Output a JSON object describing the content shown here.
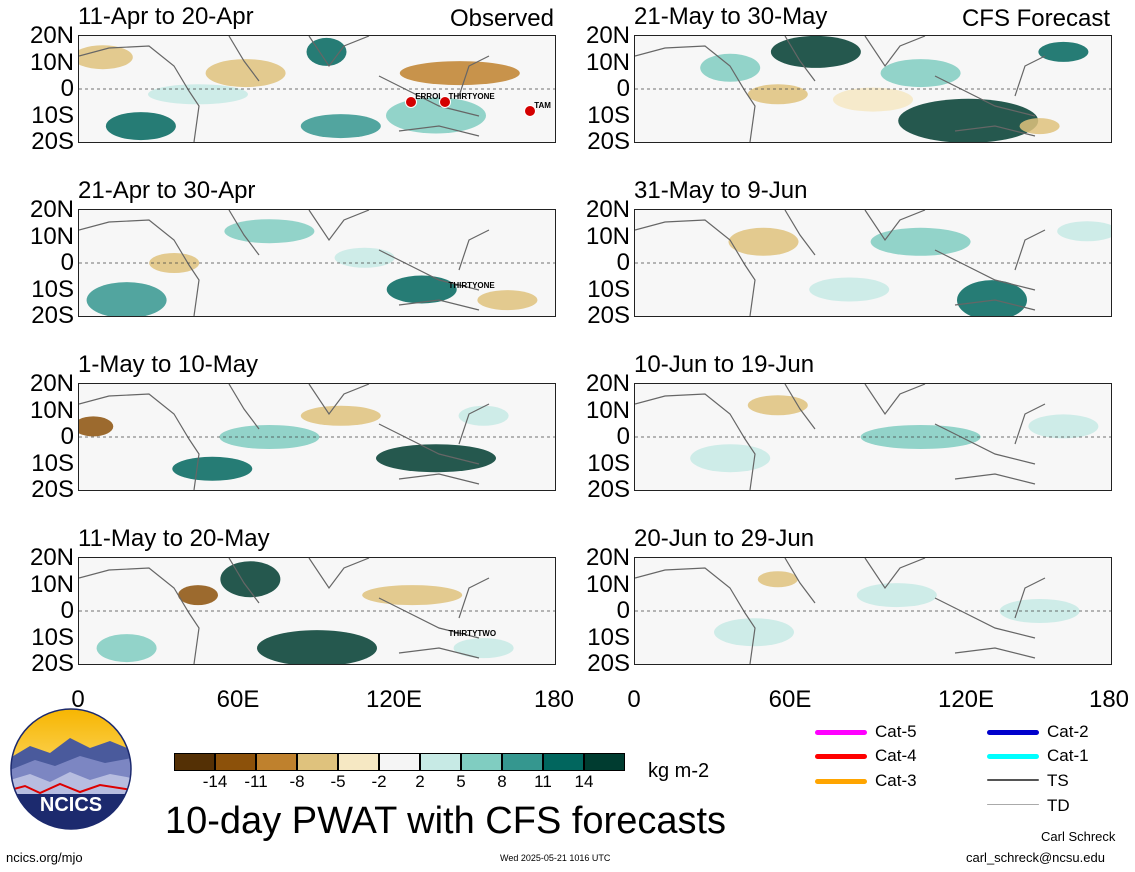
{
  "panels": [
    {
      "title": "11-Apr to 20-Apr",
      "tag": "Observed",
      "storms": [
        "ERROL",
        "THIRTYONE",
        "TAM"
      ]
    },
    {
      "title": "21-May to 30-May",
      "tag": "CFS Forecast",
      "storms": []
    },
    {
      "title": "21-Apr to 30-Apr",
      "tag": "",
      "storms": [
        "THIRTYONE"
      ]
    },
    {
      "title": "31-May to 9-Jun",
      "tag": "",
      "storms": []
    },
    {
      "title": "1-May to 10-May",
      "tag": "",
      "storms": []
    },
    {
      "title": "10-Jun to 19-Jun",
      "tag": "",
      "storms": []
    },
    {
      "title": "11-May to 20-May",
      "tag": "",
      "storms": [
        "THIRTYTWO"
      ]
    },
    {
      "title": "20-Jun to 29-Jun",
      "tag": "",
      "storms": []
    }
  ],
  "lat_labels": [
    "20N",
    "10N",
    "0",
    "10S",
    "20S"
  ],
  "lon_labels": [
    "0",
    "60E",
    "120E",
    "180"
  ],
  "colorbar": {
    "ticks": [
      "-14",
      "-11",
      "-8",
      "-5",
      "-2",
      "2",
      "5",
      "8",
      "11",
      "14"
    ],
    "colors": [
      "#543005",
      "#8c510a",
      "#bf812d",
      "#dfc27d",
      "#f6e8c3",
      "#f5f5f5",
      "#c7eae5",
      "#80cdc1",
      "#35978f",
      "#01665e",
      "#003c30"
    ],
    "units": "kg m-2"
  },
  "legend": [
    {
      "label": "Cat-5",
      "color": "#ff00ff"
    },
    {
      "label": "Cat-4",
      "color": "#ff0000"
    },
    {
      "label": "Cat-3",
      "color": "#ffa500"
    },
    {
      "label": "Cat-2",
      "color": "#0000cc"
    },
    {
      "label": "Cat-1",
      "color": "#00ffff"
    },
    {
      "label": "TS",
      "color": "#555555"
    },
    {
      "label": "TD",
      "color": "#aaaaaa"
    }
  ],
  "title": "10-day PWAT with CFS forecasts",
  "logo_text": "NCICS",
  "footer": {
    "url": "ncics.org/mjo",
    "timestamp": "Wed 2025-05-21 1016 UTC",
    "author": "Carl Schreck",
    "email": "carl_schreck@ncsu.edu"
  }
}
